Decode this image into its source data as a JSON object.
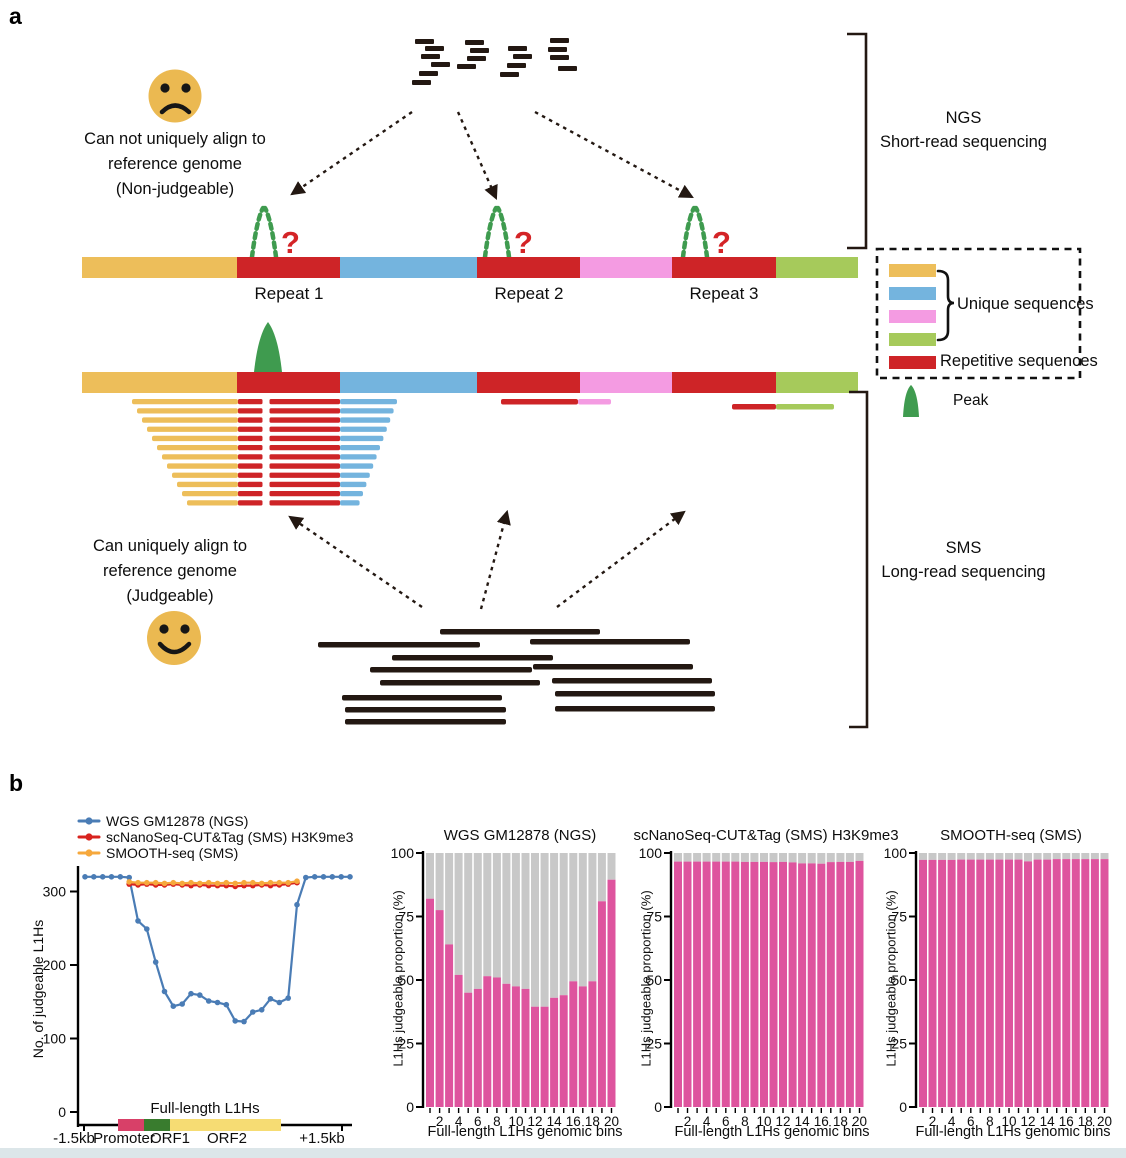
{
  "colors": {
    "track_orange": "#edbe5a",
    "track_red": "#ce2427",
    "track_blue": "#74b4de",
    "track_pink": "#f49be2",
    "track_green": "#a6ca5b",
    "peak_green": "#3f9b4f",
    "ink": "#231812",
    "face_yellow": "#ebb951",
    "question_red": "#d42427",
    "line_blue": "#4a7cb5",
    "line_red": "#d8231e",
    "line_orange": "#f6a83c",
    "bar_pink": "#de549e",
    "bar_gray": "#c8c8c8",
    "gene_promoter": "#d84068",
    "gene_orf1": "#397c2e",
    "gene_orf2": "#f6dc73"
  },
  "panel_a": {
    "label": "a",
    "sad_caption_line1": "Can not uniquely align to",
    "sad_caption_line2": "reference genome",
    "sad_caption_line3": "(Non-judgeable)",
    "happy_caption_line1": "Can uniquely align to",
    "happy_caption_line2": "reference genome",
    "happy_caption_line3": "(Judgeable)",
    "ngs_line1": "NGS",
    "ngs_line2": "Short-read sequencing",
    "sms_line1": "SMS",
    "sms_line2": "Long-read sequencing",
    "repeat_labels": [
      "Repeat 1",
      "Repeat 2",
      "Repeat 3"
    ],
    "question_mark": "?",
    "legend": {
      "unique": "Unique sequences",
      "repetitive": "Repetitive sequences",
      "peak": "Peak"
    }
  },
  "panel_b": {
    "label": "b",
    "legend": {
      "items": [
        {
          "label": "WGS GM12878 (NGS)",
          "color": "#4a7cb5"
        },
        {
          "label": "scNanoSeq-CUT&Tag (SMS) H3K9me3",
          "color": "#d8231e"
        },
        {
          "label": "SMOOTH-seq (SMS)",
          "color": "#f6a83c"
        }
      ]
    }
  },
  "chart_data": [
    {
      "type": "line",
      "ylabel": "No. of judgeable L1Hs",
      "yticks": [
        0,
        100,
        200,
        300
      ],
      "ylim": [
        0,
        330
      ],
      "x_axis_labels": {
        "left": "-1.5kb",
        "right": "+1.5kb"
      },
      "gene_annotation": "Full-length L1Hs",
      "gene_model": [
        {
          "name": "Promoter",
          "color_key": "gene_promoter"
        },
        {
          "name": "ORF1",
          "color_key": "gene_orf1"
        },
        {
          "name": "ORF2",
          "color_key": "gene_orf2"
        }
      ],
      "n_points": 31,
      "series": [
        {
          "name": "WGS GM12878 (NGS)",
          "color_key": "line_blue",
          "start_index": 0,
          "values": [
            320,
            320,
            320,
            320,
            320,
            319,
            260,
            249,
            204,
            164,
            144,
            147,
            161,
            159,
            151,
            149,
            146,
            124,
            123,
            136,
            139,
            154,
            149,
            155,
            282,
            319,
            320,
            320,
            320,
            320,
            320
          ]
        },
        {
          "name": "scNanoSeq-CUT&Tag (SMS) H3K9me3",
          "color_key": "line_red",
          "start_index": 5,
          "values": [
            310,
            309,
            310,
            309,
            309,
            310,
            309,
            308,
            309,
            308,
            308,
            308,
            307,
            308,
            308,
            309,
            308,
            309,
            310,
            312
          ]
        },
        {
          "name": "SMOOTH-seq (SMS)",
          "color_key": "line_orange",
          "start_index": 5,
          "values": [
            313,
            312,
            312,
            312,
            311,
            312,
            311,
            312,
            311,
            312,
            311,
            312,
            311,
            312,
            312,
            311,
            312,
            312,
            312,
            314
          ]
        }
      ]
    },
    {
      "type": "stacked-bar",
      "title": "WGS GM12878 (NGS)",
      "ylabel": "L1Hs judgeable proportion (%)",
      "xlabel": "Full-length L1Hs genomic bins",
      "yticks": [
        0,
        25,
        50,
        75,
        100
      ],
      "bin_tick_labels": [
        2,
        4,
        6,
        8,
        10,
        12,
        14,
        16,
        18,
        20
      ],
      "n_bins": 20,
      "values": [
        82,
        77.5,
        64,
        52,
        45,
        46.5,
        51.5,
        51,
        48.5,
        47.5,
        46.5,
        39.5,
        39.5,
        43,
        44,
        49.5,
        47.5,
        49.5,
        81,
        89.5
      ]
    },
    {
      "type": "stacked-bar",
      "title": "scNanoSeq-CUT&Tag (SMS) H3K9me3",
      "ylabel": "L1Hs judgeable proportion (%)",
      "xlabel": "Full-length L1Hs genomic bins",
      "yticks": [
        0,
        25,
        50,
        75,
        100
      ],
      "bin_tick_labels": [
        2,
        4,
        6,
        8,
        10,
        12,
        14,
        16,
        18,
        20
      ],
      "n_bins": 20,
      "values": [
        96.6,
        96.6,
        96.6,
        96.6,
        96.6,
        96.6,
        96.6,
        96.5,
        96.5,
        96.5,
        96.4,
        96.5,
        96.3,
        95.9,
        95.9,
        95.8,
        96.4,
        96.5,
        96.5,
        96.9
      ]
    },
    {
      "type": "stacked-bar",
      "title": "SMOOTH-seq (SMS)",
      "ylabel": "L1Hs judgeable proportion (%)",
      "xlabel": "Full-length L1Hs genomic bins",
      "yticks": [
        0,
        25,
        50,
        75,
        100
      ],
      "bin_tick_labels": [
        2,
        4,
        6,
        8,
        10,
        12,
        14,
        16,
        18,
        20
      ],
      "n_bins": 20,
      "values": [
        97.3,
        97.3,
        97.3,
        97.3,
        97.4,
        97.4,
        97.4,
        97.4,
        97.4,
        97.4,
        97.4,
        96.7,
        97.4,
        97.4,
        97.6,
        97.6,
        97.6,
        97.6,
        97.6,
        97.6
      ]
    }
  ]
}
